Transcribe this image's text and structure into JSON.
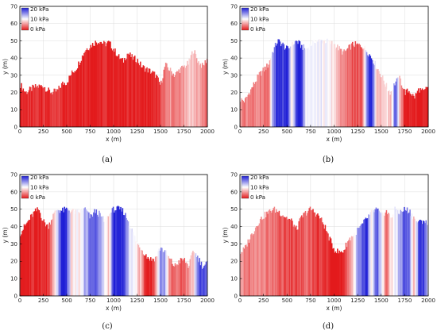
{
  "figure": {
    "legend": {
      "labels": [
        "20 kPa",
        "10 kPa",
        "0 kPa"
      ],
      "colors": [
        "#1f1fd6",
        "#ffffff",
        "#e31a1c"
      ]
    },
    "panel_captions": [
      "(a)",
      "(b)",
      "(c)",
      "(d)"
    ]
  },
  "chart_data": [
    {
      "type": "area",
      "caption": "(a)",
      "xlabel": "x (m)",
      "ylabel": "y (m)",
      "xlim": [
        0,
        2000
      ],
      "ylim": [
        0,
        70
      ],
      "xticks": [
        0,
        250,
        500,
        750,
        1000,
        1250,
        1500,
        1750,
        2000
      ],
      "yticks": [
        0,
        10,
        20,
        30,
        40,
        50,
        60,
        70
      ],
      "grid": true,
      "legend_position": "top-left",
      "colorbar": {
        "min_kPa": 0,
        "max_kPa": 20,
        "labels": [
          "20 kPa",
          "10 kPa",
          "0 kPa"
        ]
      },
      "profile": {
        "x": [
          0,
          60,
          150,
          250,
          300,
          350,
          400,
          450,
          500,
          550,
          600,
          700,
          800,
          850,
          900,
          950,
          1000,
          1050,
          1100,
          1150,
          1200,
          1250,
          1300,
          1400,
          1450,
          1500,
          1550,
          1600,
          1650,
          1700,
          1750,
          1800,
          1850,
          1900,
          1950,
          2000
        ],
        "y": [
          25,
          20,
          23,
          24,
          21,
          20,
          21,
          25,
          26,
          31,
          34,
          45,
          49,
          50,
          48,
          49,
          45,
          41,
          38,
          43,
          40,
          39,
          35,
          32,
          30,
          24,
          36,
          33,
          30,
          33,
          35,
          37,
          45,
          38,
          35,
          40
        ]
      },
      "stress_kPa": {
        "x": [
          0,
          250,
          450,
          500,
          1450,
          1500,
          1600,
          1700,
          1800,
          1850,
          1900,
          2000
        ],
        "values": [
          0,
          1,
          2,
          0,
          0,
          2,
          5,
          4,
          7,
          8,
          6,
          4
        ]
      }
    },
    {
      "type": "area",
      "caption": "(b)",
      "xlabel": "x (m)",
      "ylabel": "y (m)",
      "xlim": [
        0,
        2000
      ],
      "ylim": [
        0,
        70
      ],
      "xticks": [
        0,
        250,
        500,
        750,
        1000,
        1250,
        1500,
        1750,
        2000
      ],
      "yticks": [
        0,
        10,
        20,
        30,
        40,
        50,
        60,
        70
      ],
      "grid": true,
      "legend_position": "top-left",
      "colorbar": {
        "min_kPa": 0,
        "max_kPa": 20,
        "labels": [
          "20 kPa",
          "10 kPa",
          "0 kPa"
        ]
      },
      "profile": {
        "x": [
          0,
          50,
          100,
          200,
          250,
          300,
          350,
          400,
          450,
          500,
          600,
          650,
          700,
          800,
          900,
          1000,
          1100,
          1200,
          1300,
          1350,
          1400,
          1450,
          1500,
          1550,
          1600,
          1650,
          1700,
          1750,
          1800,
          1850,
          1900,
          1950,
          2000
        ],
        "y": [
          16,
          15,
          20,
          30,
          33,
          36,
          44,
          50,
          48,
          45,
          50,
          47,
          45,
          50,
          50,
          48,
          43,
          48,
          47,
          44,
          40,
          35,
          30,
          24,
          20,
          26,
          28,
          20,
          21,
          17,
          22,
          20,
          24
        ]
      },
      "stress_kPa": {
        "x": [
          0,
          250,
          300,
          350,
          400,
          450,
          500,
          550,
          600,
          650,
          700,
          750,
          800,
          900,
          1000,
          1100,
          1200,
          1300,
          1350,
          1400,
          1450,
          1500,
          1550,
          1600,
          1650,
          1700,
          1750,
          2000
        ],
        "values": [
          5,
          4,
          2,
          15,
          20,
          18,
          20,
          8,
          19,
          20,
          10,
          12,
          11,
          10,
          9,
          4,
          3,
          2,
          17,
          20,
          8,
          6,
          10,
          6,
          18,
          6,
          0,
          0
        ]
      }
    },
    {
      "type": "area",
      "caption": "(c)",
      "xlabel": "x (m)",
      "ylabel": "y (m)",
      "xlim": [
        0,
        2000
      ],
      "ylim": [
        0,
        70
      ],
      "xticks": [
        0,
        250,
        500,
        750,
        1000,
        1250,
        1500,
        1750,
        2000
      ],
      "yticks": [
        0,
        10,
        20,
        30,
        40,
        50,
        60,
        70
      ],
      "grid": true,
      "legend_position": "top-left",
      "colorbar": {
        "min_kPa": 0,
        "max_kPa": 20,
        "labels": [
          "20 kPa",
          "10 kPa",
          "0 kPa"
        ]
      },
      "profile": {
        "x": [
          0,
          50,
          100,
          150,
          200,
          250,
          300,
          350,
          400,
          450,
          500,
          600,
          700,
          750,
          800,
          850,
          900,
          1000,
          1050,
          1100,
          1150,
          1200,
          1250,
          1300,
          1350,
          1400,
          1450,
          1500,
          1550,
          1600,
          1650,
          1700,
          1750,
          1800,
          1850,
          1900,
          1950,
          2000
        ],
        "y": [
          36,
          40,
          44,
          48,
          50,
          43,
          40,
          46,
          50,
          49,
          50,
          48,
          50,
          45,
          49,
          47,
          43,
          50,
          50,
          49,
          44,
          37,
          30,
          27,
          23,
          21,
          22,
          28,
          25,
          21,
          17,
          20,
          21,
          17,
          26,
          22,
          17,
          19
        ]
      },
      "stress_kPa": {
        "x": [
          0,
          300,
          350,
          400,
          450,
          500,
          550,
          600,
          650,
          700,
          750,
          800,
          900,
          950,
          1000,
          1050,
          1100,
          1150,
          1200,
          1300,
          1350,
          1400,
          1450,
          1500,
          1550,
          1600,
          1700,
          1800,
          1850,
          1900,
          1950,
          2000
        ],
        "values": [
          0,
          1,
          5,
          12,
          20,
          19,
          8,
          10,
          9,
          14,
          16,
          18,
          11,
          7,
          20,
          19,
          20,
          13,
          11,
          6,
          0,
          0,
          5,
          16,
          14,
          4,
          3,
          5,
          8,
          17,
          19,
          16
        ]
      }
    },
    {
      "type": "area",
      "caption": "(d)",
      "xlabel": "x (m)",
      "ylabel": "y (m)",
      "xlim": [
        0,
        2000
      ],
      "ylim": [
        0,
        70
      ],
      "xticks": [
        0,
        250,
        500,
        750,
        1000,
        1250,
        1500,
        1750,
        2000
      ],
      "yticks": [
        0,
        10,
        20,
        30,
        40,
        50,
        60,
        70
      ],
      "grid": true,
      "legend_position": "top-left",
      "colorbar": {
        "min_kPa": 0,
        "max_kPa": 20,
        "labels": [
          "20 kPa",
          "10 kPa",
          "0 kPa"
        ]
      },
      "profile": {
        "x": [
          0,
          50,
          100,
          150,
          200,
          250,
          300,
          350,
          400,
          450,
          500,
          550,
          600,
          650,
          700,
          750,
          800,
          850,
          900,
          950,
          1000,
          1050,
          1100,
          1150,
          1200,
          1250,
          1300,
          1350,
          1400,
          1450,
          1500,
          1550,
          1600,
          1650,
          1700,
          1750,
          1800,
          1850,
          1900,
          1950,
          2000
        ],
        "y": [
          25,
          27,
          33,
          38,
          43,
          46,
          48,
          50,
          49,
          47,
          45,
          43,
          38,
          45,
          48,
          50,
          48,
          45,
          40,
          33,
          27,
          25,
          26,
          32,
          35,
          38,
          41,
          45,
          48,
          50,
          46,
          49,
          45,
          50,
          48,
          50,
          49,
          45,
          42,
          44,
          40
        ]
      },
      "stress_kPa": {
        "x": [
          0,
          100,
          200,
          300,
          400,
          500,
          600,
          700,
          800,
          900,
          1000,
          1100,
          1150,
          1200,
          1250,
          1300,
          1350,
          1400,
          1450,
          1500,
          1550,
          1600,
          1650,
          1700,
          1750,
          1800,
          1850,
          1900,
          1950,
          2000
        ],
        "values": [
          5,
          4,
          5,
          4,
          3,
          2,
          2,
          3,
          2,
          1,
          0,
          0,
          3,
          8,
          15,
          17,
          19,
          9,
          18,
          12,
          4,
          8,
          10,
          14,
          18,
          16,
          5,
          18,
          19,
          12
        ]
      }
    }
  ]
}
